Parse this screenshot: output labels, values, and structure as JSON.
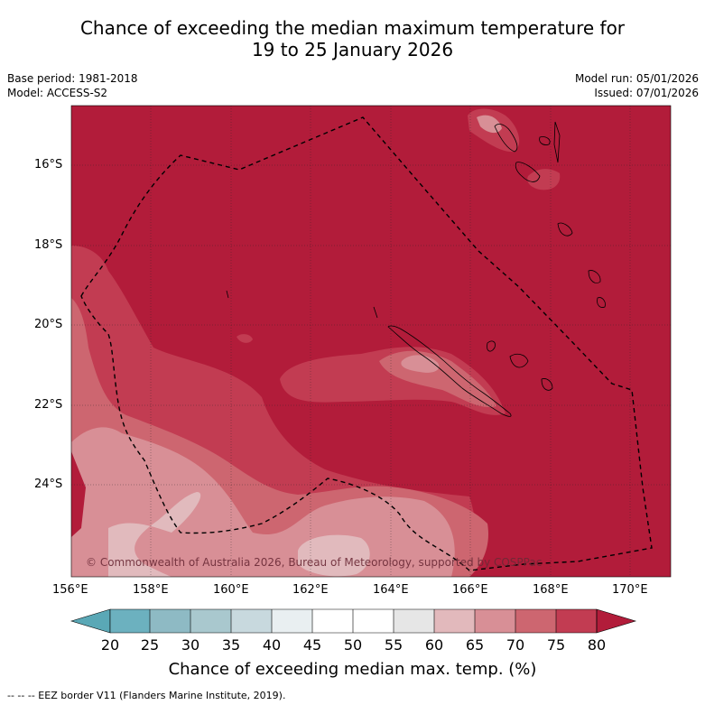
{
  "title": {
    "line1": "Chance of exceeding the median maximum temperature for",
    "line2": "19 to 25 January 2026"
  },
  "meta": {
    "base_period": "Base period: 1981-2018",
    "model": "Model: ACCESS-S2",
    "model_run": "Model run: 05/01/2026",
    "issued": "Issued: 07/01/2026"
  },
  "map": {
    "lat_labels": [
      "16°S",
      "18°S",
      "20°S",
      "22°S",
      "24°S"
    ],
    "lon_labels": [
      "156°E",
      "158°E",
      "160°E",
      "162°E",
      "164°E",
      "166°E",
      "168°E",
      "170°E"
    ],
    "copyright": "© Commonwealth of Australia 2026, Bureau of Meteorology, supported by COSPPac",
    "colors": {
      "c80": "#b21c3a",
      "c75": "#c23c52",
      "c70": "#cd6670",
      "c65": "#d88f96",
      "c60": "#e1babd"
    }
  },
  "colorbar": {
    "ticks": [
      "20",
      "25",
      "30",
      "35",
      "40",
      "45",
      "50",
      "55",
      "60",
      "65",
      "70",
      "75",
      "80"
    ],
    "colors": [
      "#5aa8b6",
      "#6cb1bf",
      "#8ebac4",
      "#a9c8ce",
      "#c8d9de",
      "#e9eff1",
      "#ffffff",
      "#ffffff",
      "#e6e6e6",
      "#e2b9bc",
      "#d88f96",
      "#cd6670",
      "#c23c52",
      "#b21c3a"
    ],
    "label": "Chance of exceeding median max. temp. (%)"
  },
  "footnote": "--  --  -- EEZ border V11 (Flanders Marine Institute, 2019)."
}
